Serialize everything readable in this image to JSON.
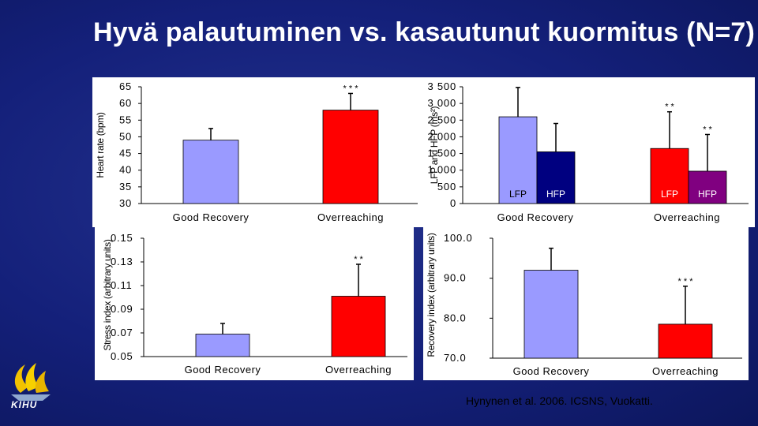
{
  "title": "Hyvä palautuminen vs. kasautunut kuormitus (N=7)",
  "reference": "Hynynen et al. 2006. ICSNS, Vuokatti.",
  "logo_text": "KIHU",
  "colors": {
    "good": "#9a9aff",
    "over": "#ff0000",
    "lfp_good": "#9a9aff",
    "hfp_good": "#000080",
    "lfp_over": "#ff0000",
    "hfp_over": "#800080",
    "err": "#000000"
  },
  "chart_data": [
    {
      "id": "hr",
      "type": "bar",
      "ylabel": "Heart rate (bpm)",
      "ylim": [
        30,
        65
      ],
      "yticks": [
        "30",
        "35",
        "40",
        "45",
        "50",
        "55",
        "60",
        "65"
      ],
      "categories": [
        "Good Recovery",
        "Overreaching"
      ],
      "values": [
        49,
        58
      ],
      "errors": [
        3.5,
        5
      ],
      "significance": [
        "",
        "* * *"
      ]
    },
    {
      "id": "lfhf",
      "type": "bar",
      "ylabel": "LFP and HFP (ms²)",
      "ylim": [
        0,
        3500
      ],
      "yticks": [
        "0",
        "500",
        "1 000",
        "1 500",
        "2 000",
        "2 500",
        "3 000",
        "3 500"
      ],
      "categories": [
        "Good Recovery",
        "Overreaching"
      ],
      "series": [
        {
          "name": "LFP",
          "values": [
            2600,
            1650
          ],
          "errors": [
            880,
            1100
          ],
          "significance": [
            "",
            "* *"
          ]
        },
        {
          "name": "HFP",
          "values": [
            1550,
            970
          ],
          "errors": [
            850,
            1100
          ],
          "significance": [
            "",
            "* *"
          ]
        }
      ]
    },
    {
      "id": "stress",
      "type": "bar",
      "ylabel": "Stress index (arbitrary units)",
      "ylim": [
        0.05,
        0.15
      ],
      "yticks": [
        "0.05",
        "0.07",
        "0.09",
        "0.11",
        "0.13",
        "0.15"
      ],
      "categories": [
        "Good Recovery",
        "Overreaching"
      ],
      "values": [
        0.069,
        0.101
      ],
      "errors": [
        0.009,
        0.027
      ],
      "significance": [
        "",
        "* *"
      ]
    },
    {
      "id": "recovery",
      "type": "bar",
      "ylabel": "Recovery index (arbitrary units)",
      "ylim": [
        70,
        100
      ],
      "yticks": [
        "70.0",
        "80.0",
        "90.0",
        "100.0"
      ],
      "categories": [
        "Good Recovery",
        "Overreaching"
      ],
      "values": [
        92,
        78.5
      ],
      "errors": [
        5.5,
        9.5
      ],
      "significance": [
        "",
        "* * *"
      ]
    }
  ]
}
